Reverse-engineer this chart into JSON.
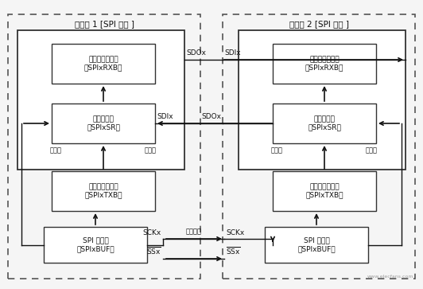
{
  "bg_color": "#f5f5f5",
  "box_color": "#ffffff",
  "box_edge_color": "#333333",
  "arrow_color": "#111111",
  "text_color": "#111111",
  "title_left": "处理器 1 [SPI 主机 ]",
  "title_right": "处理器 2 [SPI 从机 ]",
  "label_msb": "最高位",
  "label_lsb": "最低位",
  "SDOx": "SDOx",
  "SDIx": "SDIx",
  "SCKx": "SCKx",
  "SSx": "SSx",
  "serial_clock": "串行时钟",
  "rxb_label": "串行接收缓冲器\n（SPIxRXB）",
  "sr_label": "移位寄存器\n（SPIxSR）",
  "txb_label": "串行发送缓冲器\n（SPIxTXB）",
  "buf_label": "SPI 缓冲器\n（SPIxBUF）",
  "watermark": "www.elecfans.com"
}
